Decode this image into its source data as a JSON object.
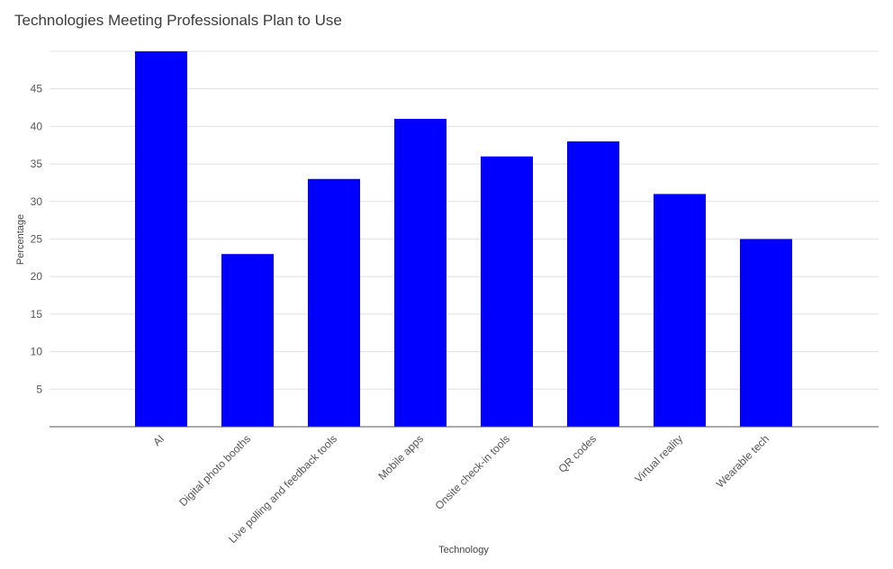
{
  "chart_data": {
    "type": "bar",
    "title": "Technologies Meeting Professionals Plan to Use",
    "xlabel": "Technology",
    "ylabel": "Percentage",
    "categories": [
      "AI",
      "Digital photo booths",
      "Live polling and feedback tools",
      "Mobile apps",
      "Onsite check-in tools",
      "QR codes",
      "Virtual reality",
      "Wearable tech"
    ],
    "values": [
      50,
      23,
      33,
      41,
      36,
      38,
      31,
      25
    ],
    "yticks": [
      5,
      10,
      15,
      20,
      25,
      30,
      35,
      40,
      45
    ],
    "ylim": [
      0,
      50
    ],
    "grid": true,
    "legend": "none",
    "bar_color": "#0000ff"
  }
}
